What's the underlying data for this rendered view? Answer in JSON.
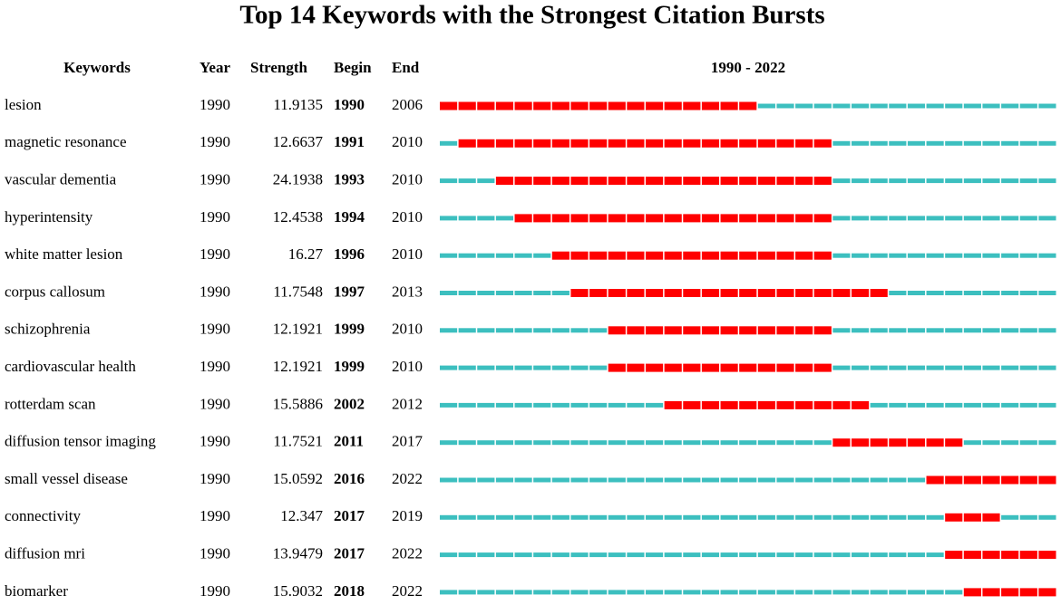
{
  "title": "Top 14 Keywords with the Strongest Citation Bursts",
  "columns": [
    "Keywords",
    "Year",
    "Strength",
    "Begin",
    "End"
  ],
  "timeline_label": "1990 - 2022",
  "colors": {
    "burst": "#ff0000",
    "base": "#3cbfbf"
  },
  "rows": [
    {
      "keyword": "lesion",
      "year": 1990,
      "strength": 11.9135,
      "begin": 1990,
      "end": 2006
    },
    {
      "keyword": "magnetic resonance",
      "year": 1990,
      "strength": 12.6637,
      "begin": 1991,
      "end": 2010
    },
    {
      "keyword": "vascular dementia",
      "year": 1990,
      "strength": 24.1938,
      "begin": 1993,
      "end": 2010
    },
    {
      "keyword": "hyperintensity",
      "year": 1990,
      "strength": 12.4538,
      "begin": 1994,
      "end": 2010
    },
    {
      "keyword": "white matter lesion",
      "year": 1990,
      "strength": 16.27,
      "begin": 1996,
      "end": 2010
    },
    {
      "keyword": "corpus callosum",
      "year": 1990,
      "strength": 11.7548,
      "begin": 1997,
      "end": 2013
    },
    {
      "keyword": "schizophrenia",
      "year": 1990,
      "strength": 12.1921,
      "begin": 1999,
      "end": 2010
    },
    {
      "keyword": "cardiovascular health",
      "year": 1990,
      "strength": 12.1921,
      "begin": 1999,
      "end": 2010
    },
    {
      "keyword": "rotterdam scan",
      "year": 1990,
      "strength": 15.5886,
      "begin": 2002,
      "end": 2012
    },
    {
      "keyword": "diffusion tensor imaging",
      "year": 1990,
      "strength": 11.7521,
      "begin": 2011,
      "end": 2017
    },
    {
      "keyword": "small vessel disease",
      "year": 1990,
      "strength": 15.0592,
      "begin": 2016,
      "end": 2022
    },
    {
      "keyword": "connectivity",
      "year": 1990,
      "strength": 12.347,
      "begin": 2017,
      "end": 2019
    },
    {
      "keyword": "diffusion mri",
      "year": 1990,
      "strength": 13.9479,
      "begin": 2017,
      "end": 2022
    },
    {
      "keyword": "biomarker",
      "year": 1990,
      "strength": 15.9032,
      "begin": 2018,
      "end": 2022
    }
  ]
}
